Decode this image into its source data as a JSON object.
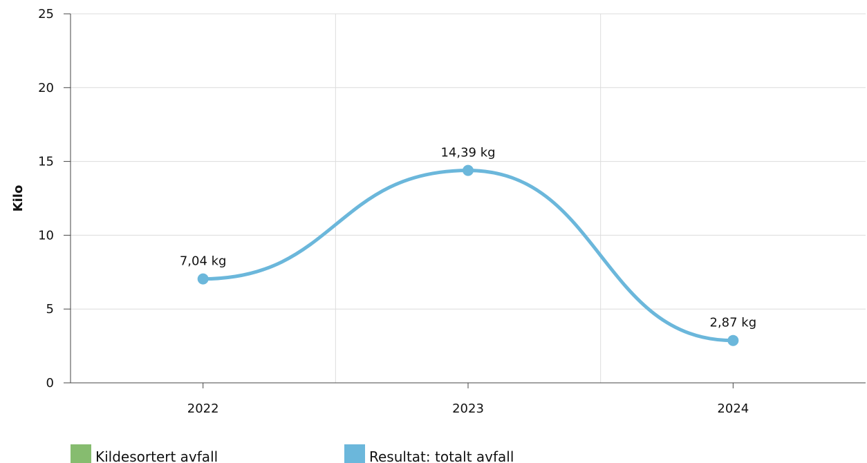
{
  "chart_data": {
    "type": "line",
    "ylabel": "Kilo",
    "xlabel": "",
    "ylim": [
      0,
      25
    ],
    "yticks": [
      "0",
      "5",
      "10",
      "15",
      "20",
      "25"
    ],
    "categories": [
      "2022",
      "2023",
      "2024"
    ],
    "grid": true,
    "smooth": true,
    "series": [
      {
        "name": "Resultat: totalt avfall",
        "color": "#6bb7db",
        "values": [
          7.04,
          14.39,
          2.87
        ],
        "data_labels": [
          "7,04 kg",
          "14,39 kg",
          "2,87 kg"
        ]
      }
    ],
    "legend": {
      "placement": "bottom-left",
      "items": [
        {
          "label": "Kildesortert avfall",
          "color": "#86bc6f"
        },
        {
          "label": "Resultat: totalt avfall",
          "color": "#6bb7db"
        }
      ]
    }
  }
}
